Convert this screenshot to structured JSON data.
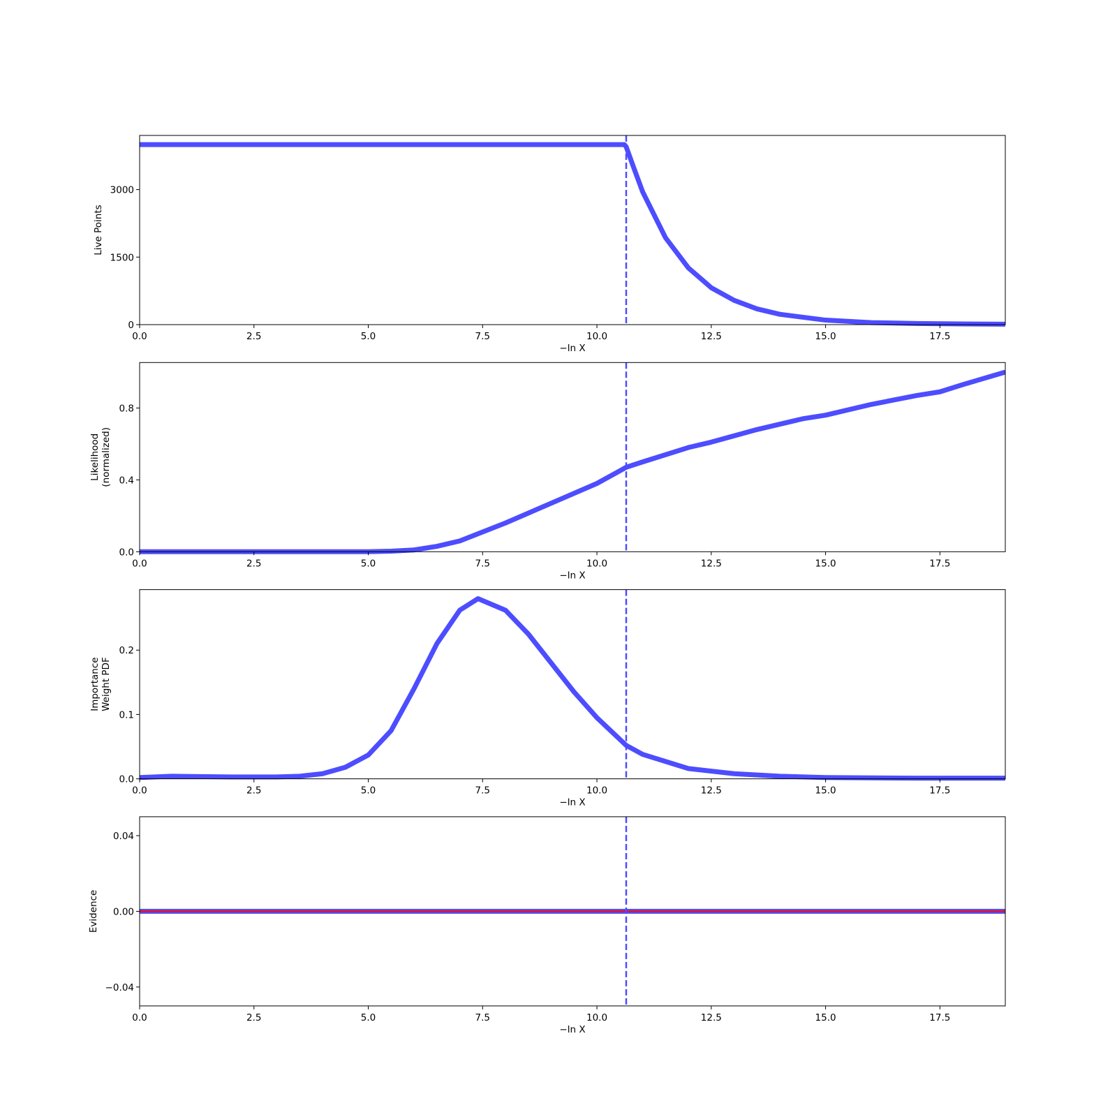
{
  "chart_data": [
    {
      "type": "line",
      "xlabel": "−ln X",
      "ylabel": [
        "Live Points"
      ],
      "x": [
        0,
        10.6,
        10.64,
        10.8,
        11,
        11.5,
        12,
        12.5,
        13,
        13.5,
        14,
        15,
        16,
        17,
        18,
        18.93
      ],
      "series": [
        {
          "color": "#4d4dff",
          "values": [
            4000,
            4000,
            3950,
            3500,
            2950,
            1930,
            1260,
            820,
            540,
            350,
            230,
            100,
            45,
            25,
            15,
            10
          ]
        }
      ],
      "vline": 10.64,
      "vline_color": "#4d4dff",
      "xlim": [
        0,
        18.93
      ],
      "ylim": [
        0,
        4203
      ],
      "xticks": [
        {
          "value": 0,
          "label": "0.0"
        },
        2.5,
        {
          "value": 5,
          "label": "5.0"
        },
        7.5,
        {
          "value": 10,
          "label": "10.0"
        },
        12.5,
        {
          "value": 15,
          "label": "15.0"
        },
        17.5
      ],
      "yticks": [
        0,
        1500,
        3000
      ]
    },
    {
      "type": "line",
      "xlabel": "−ln X",
      "ylabel": [
        "Likelihood",
        "(normalized)"
      ],
      "x": [
        0,
        5,
        5.5,
        6,
        6.5,
        7,
        7.5,
        8,
        9,
        10,
        10.64,
        11,
        12,
        12.5,
        13.5,
        14.5,
        15,
        16,
        17,
        17.5,
        18,
        18.93
      ],
      "series": [
        {
          "color": "#4d4dff",
          "values": [
            0,
            0,
            0.003,
            0.01,
            0.03,
            0.06,
            0.11,
            0.16,
            0.27,
            0.38,
            0.47,
            0.5,
            0.58,
            0.61,
            0.68,
            0.74,
            0.76,
            0.82,
            0.87,
            0.89,
            0.93,
            1.0
          ]
        }
      ],
      "vline": 10.64,
      "vline_color": "#4d4dff",
      "xlim": [
        0,
        18.93
      ],
      "ylim": [
        0,
        1.053
      ],
      "xticks": [
        {
          "value": 0,
          "label": "0.0"
        },
        2.5,
        {
          "value": 5,
          "label": "5.0"
        },
        7.5,
        {
          "value": 10,
          "label": "10.0"
        },
        12.5,
        {
          "value": 15,
          "label": "15.0"
        },
        17.5
      ],
      "yticks": [
        {
          "value": 0,
          "label": "0.0"
        },
        0.4,
        0.8
      ]
    },
    {
      "type": "line",
      "xlabel": "−ln X",
      "ylabel": [
        "Importance",
        "Weight PDF"
      ],
      "x": [
        0,
        0.7,
        2,
        3,
        3.5,
        4,
        4.5,
        5,
        5.5,
        6,
        6.5,
        7,
        7.4,
        8,
        8.5,
        9,
        9.5,
        10,
        10.64,
        11,
        12,
        13,
        14,
        15,
        17,
        18.93
      ],
      "series": [
        {
          "color": "#4d4dff",
          "values": [
            0.002,
            0.004,
            0.003,
            0.003,
            0.004,
            0.008,
            0.018,
            0.037,
            0.075,
            0.14,
            0.21,
            0.262,
            0.28,
            0.262,
            0.225,
            0.18,
            0.135,
            0.095,
            0.052,
            0.038,
            0.016,
            0.008,
            0.004,
            0.002,
            0.001,
            0.001
          ]
        }
      ],
      "vline": 10.64,
      "vline_color": "#4d4dff",
      "xlim": [
        0,
        18.93
      ],
      "ylim": [
        0,
        0.294
      ],
      "xticks": [
        {
          "value": 0,
          "label": "0.0"
        },
        2.5,
        {
          "value": 5,
          "label": "5.0"
        },
        7.5,
        {
          "value": 10,
          "label": "10.0"
        },
        12.5,
        {
          "value": 15,
          "label": "15.0"
        },
        17.5
      ],
      "yticks": [
        {
          "value": 0,
          "label": "0.0"
        },
        0.1,
        0.2
      ]
    },
    {
      "type": "line",
      "xlabel": "−ln X",
      "ylabel": [
        "Evidence"
      ],
      "x": [
        0,
        18.93
      ],
      "series": [
        {
          "color": "#4d4dff",
          "values": [
            0,
            0
          ]
        },
        {
          "color": "#e8102a",
          "values": [
            0,
            0
          ]
        }
      ],
      "vline": 10.64,
      "vline_color": "#4d4dff",
      "xlim": [
        0,
        18.93
      ],
      "ylim": [
        -0.05,
        0.05
      ],
      "xticks": [
        {
          "value": 0,
          "label": "0.0"
        },
        2.5,
        {
          "value": 5,
          "label": "5.0"
        },
        7.5,
        {
          "value": 10,
          "label": "10.0"
        },
        12.5,
        {
          "value": 15,
          "label": "15.0"
        },
        17.5
      ],
      "yticks": [
        {
          "value": -0.04,
          "label": "−0.04"
        },
        {
          "value": 0,
          "label": "0.00"
        },
        0.04
      ]
    }
  ]
}
